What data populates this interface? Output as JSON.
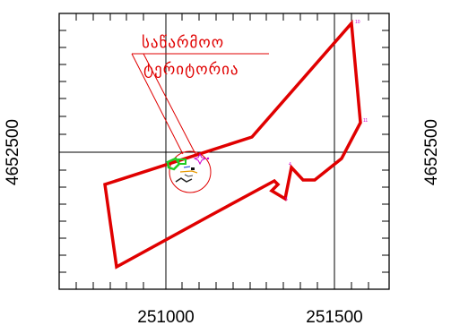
{
  "map": {
    "x_ticks": [
      "251000",
      "251500"
    ],
    "y_tick_left": "4652500",
    "y_tick_right": "4652500",
    "label_line1": "საწარმოო",
    "label_line2": "ტერიტორია",
    "vertex_labels": [
      "10",
      "11",
      "4",
      "5"
    ],
    "colors": {
      "boundary": "#e00000",
      "grid": "#000000",
      "vertex_label": "#cc00cc",
      "facility_green": "#22cc22"
    }
  }
}
